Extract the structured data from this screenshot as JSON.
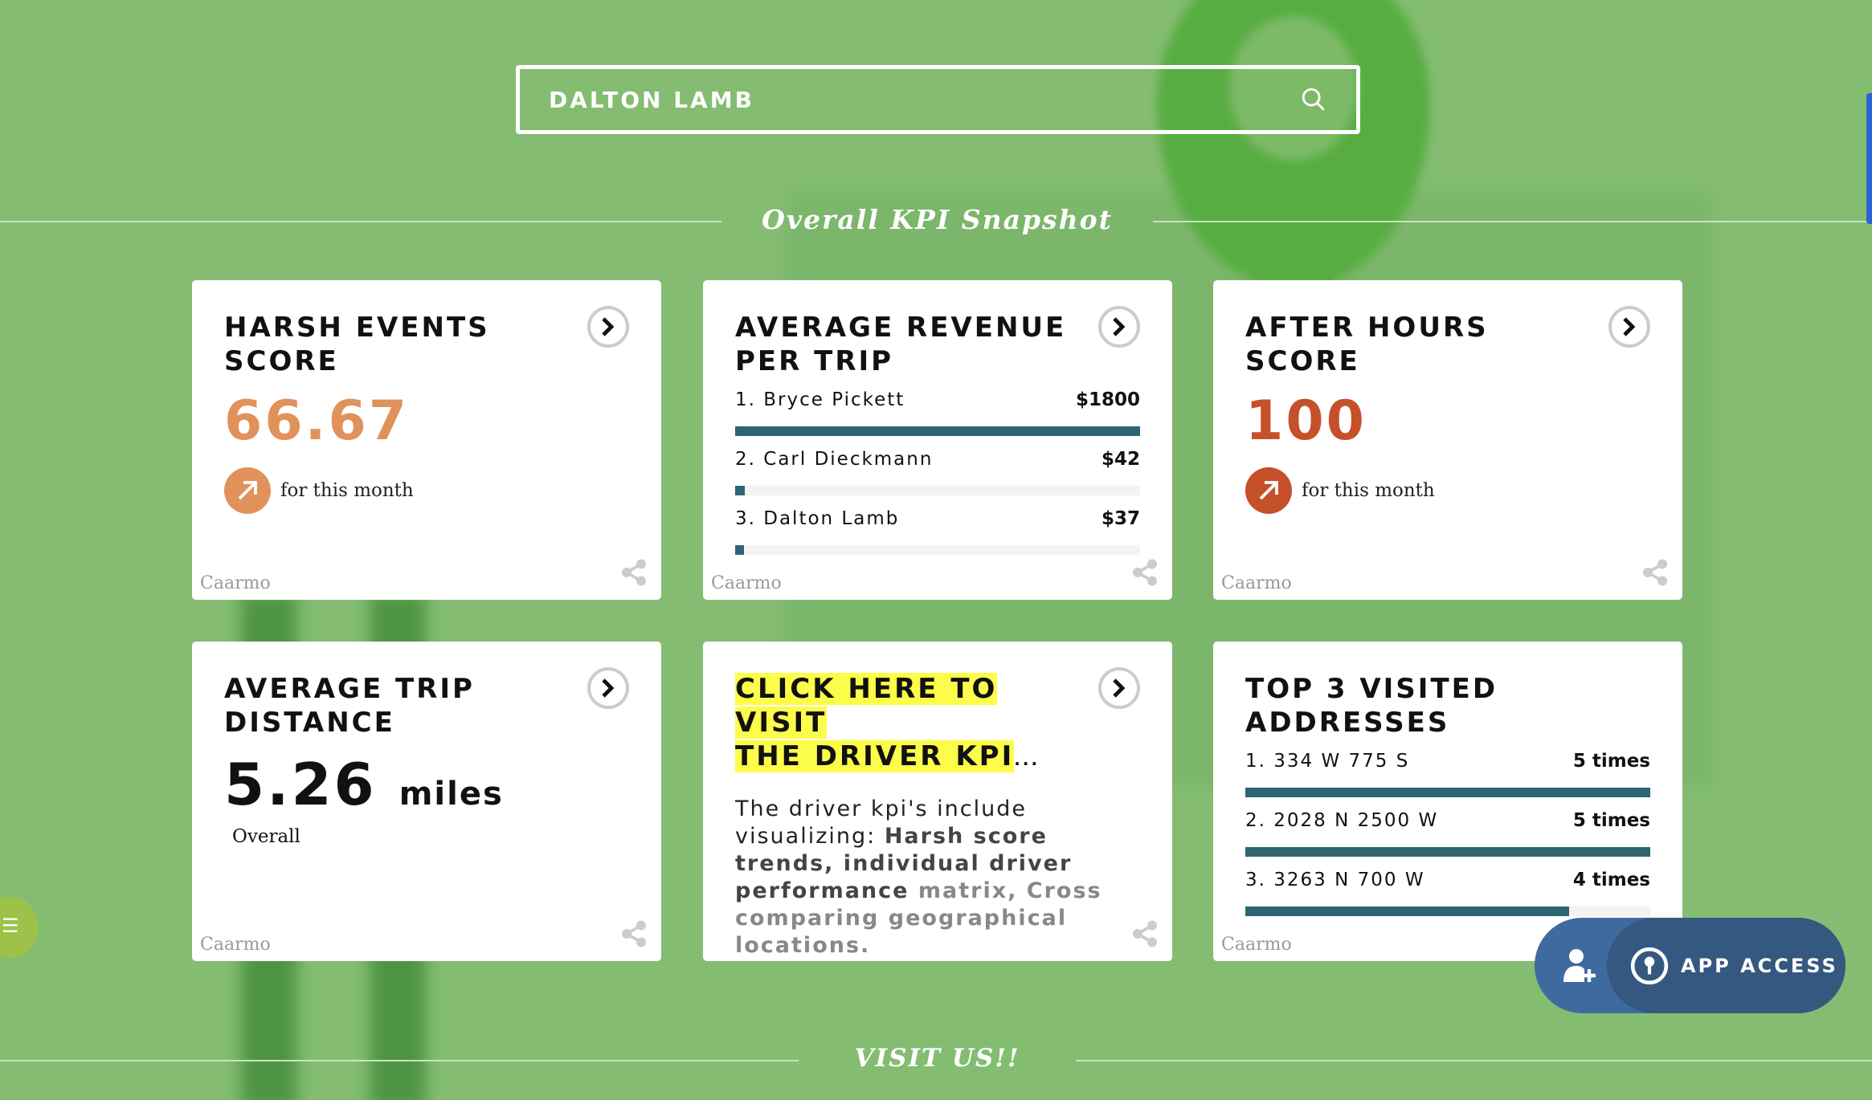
{
  "search": {
    "value": "DALTON LAMB",
    "icon": "search-icon"
  },
  "section_title": "Overall KPI Snapshot",
  "footer_title": "VISIT US!!",
  "brand": "Caarmo",
  "colors": {
    "background": "#84bd72",
    "bar": "#2d6573",
    "harsh": "#e0925a",
    "after_hours": "#c5502a",
    "highlight": "#fcfc4a",
    "app_button": "#34587f"
  },
  "cards": {
    "harsh": {
      "title": "HARSH EVENTS SCORE",
      "value": "66.67",
      "trend_label": "for this month"
    },
    "revenue": {
      "title": "AVERAGE REVENUE PER TRIP",
      "rows": [
        {
          "label": "1. Bryce Pickett",
          "value": "$1800",
          "fill": 100
        },
        {
          "label": "2. Carl Dieckmann",
          "value": "$42",
          "fill": 2.3
        },
        {
          "label": "3. Dalton Lamb",
          "value": "$37",
          "fill": 2.1
        }
      ]
    },
    "after_hours": {
      "title": "AFTER HOURS SCORE",
      "value": "100",
      "trend_label": "for this month"
    },
    "distance": {
      "title": "AVERAGE TRIP DISTANCE",
      "value": "5.26",
      "unit": "miles",
      "sub": "Overall"
    },
    "driver_kpi": {
      "title_line1": "CLICK HERE TO VISIT",
      "title_line2": "THE DRIVER KPI",
      "ellipsis": "...",
      "desc_plain": "The driver kpi's include visualizing: ",
      "desc_bold": "Harsh score trends, individual driver performance",
      "desc_faded": " matrix, Cross comparing geographical locations."
    },
    "addresses": {
      "title": "TOP 3 VISITED ADDRESSES",
      "rows": [
        {
          "label": "1. 334 W 775 S",
          "value": "5 times",
          "fill": 100
        },
        {
          "label": "2. 2028 N 2500 W",
          "value": "5 times",
          "fill": 100
        },
        {
          "label": "3. 3263 N 700 W",
          "value": "4 times",
          "fill": 80
        }
      ]
    }
  },
  "app_access": {
    "label": "APP ACCESS"
  }
}
